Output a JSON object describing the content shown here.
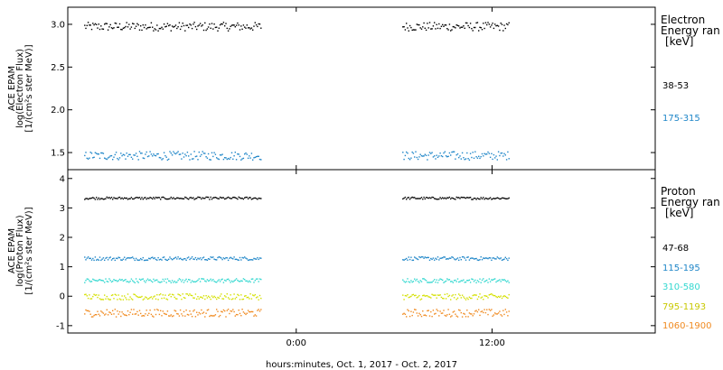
{
  "chart_data": [
    {
      "type": "scatter",
      "panel": "electron",
      "ylabel_lines": [
        "ACE EPAM",
        "log(Electron Flux)",
        "[1/(cm²s ster MeV)]"
      ],
      "ylim": [
        1.3,
        3.2
      ],
      "yticks": [
        1.5,
        2.0,
        2.5,
        3.0
      ],
      "ytick_labels": [
        "1.5",
        "2.0",
        "2.5",
        "3.0"
      ],
      "x_range_hours": [
        -14,
        22
      ],
      "legend_title_lines": [
        "Electron",
        "Energy ran",
        "[keV]"
      ],
      "series": [
        {
          "name": "38-53",
          "color": "#000000",
          "level": 2.98,
          "spread": 0.05,
          "segments": [
            [
              -13.0,
              -2.2
            ],
            [
              6.5,
              13.0
            ]
          ]
        },
        {
          "name": "175-315",
          "color": "#1f86c8",
          "level": 1.47,
          "spread": 0.05,
          "segments": [
            [
              -13.0,
              -2.2
            ],
            [
              6.5,
              13.0
            ]
          ]
        }
      ]
    },
    {
      "type": "scatter",
      "panel": "proton",
      "ylabel_lines": [
        "ACE EPAM",
        "log(Proton Flux)",
        "[1/(cm²s ster MeV)]"
      ],
      "ylim": [
        -1.25,
        4.3
      ],
      "yticks": [
        -1,
        0,
        1,
        2,
        3,
        4
      ],
      "ytick_labels": [
        "-1",
        "0",
        "1",
        "2",
        "3",
        "4"
      ],
      "x_range_hours": [
        -14,
        22
      ],
      "xticks_hours": [
        0,
        12
      ],
      "xtick_labels": [
        "0:00",
        "12:00"
      ],
      "xlabel": "hours:minutes, Oct.  1, 2017 - Oct.  2, 2017",
      "legend_title_lines": [
        "Proton",
        "Energy ran",
        "[keV]"
      ],
      "series": [
        {
          "name": "47-68",
          "color": "#000000",
          "level": 3.35,
          "spread": 0.04,
          "segments": [
            [
              -13.0,
              -2.2
            ],
            [
              6.5,
              13.0
            ]
          ]
        },
        {
          "name": "115-195",
          "color": "#1f86c8",
          "level": 1.3,
          "spread": 0.06,
          "segments": [
            [
              -13.0,
              -2.2
            ],
            [
              6.5,
              13.0
            ]
          ]
        },
        {
          "name": "310-580",
          "color": "#34d8d0",
          "level": 0.55,
          "spread": 0.07,
          "segments": [
            [
              -13.0,
              -2.2
            ],
            [
              6.5,
              13.0
            ]
          ]
        },
        {
          "name": "795-1193",
          "color": "#d4e000",
          "level": 0.0,
          "spread": 0.1,
          "segments": [
            [
              -13.0,
              -2.2
            ],
            [
              6.5,
              13.0
            ]
          ]
        },
        {
          "name": "1060-1900",
          "color": "#f08a20",
          "level": -0.55,
          "spread": 0.13,
          "segments": [
            [
              -13.0,
              -2.2
            ],
            [
              6.5,
              13.0
            ]
          ]
        }
      ]
    }
  ]
}
